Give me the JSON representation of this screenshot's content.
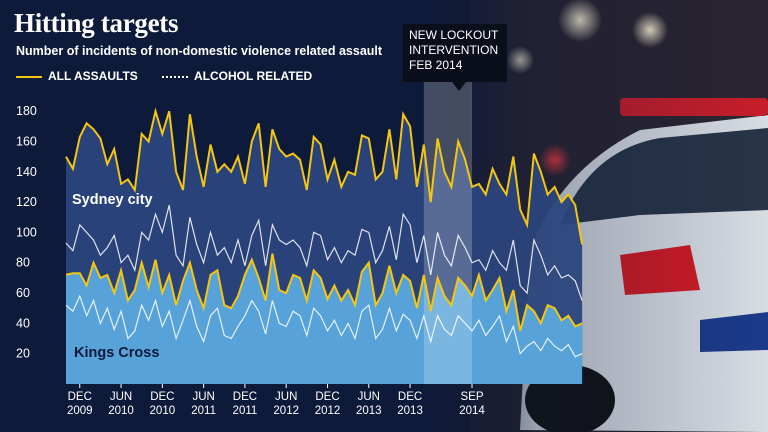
{
  "chart_data": {
    "type": "area",
    "title": "Hitting targets",
    "subtitle": "Number of incidents of non-domestic violence related assault",
    "legend": [
      {
        "label": "ALL ASSAULTS",
        "style": "solid",
        "color": "#f3c613"
      },
      {
        "label": "ALCOHOL RELATED",
        "style": "dotted",
        "color": "#ffffff"
      }
    ],
    "legend_position": "top-left",
    "ylim": [
      0,
      190
    ],
    "yticks": [
      20,
      40,
      60,
      80,
      100,
      120,
      140,
      160,
      180
    ],
    "x_range": [
      "2009-10",
      "2014-09"
    ],
    "xticks": [
      {
        "month": "DEC",
        "year": "2009",
        "date": "2009-12"
      },
      {
        "month": "JUN",
        "year": "2010",
        "date": "2010-06"
      },
      {
        "month": "DEC",
        "year": "2010",
        "date": "2010-12"
      },
      {
        "month": "JUN",
        "year": "2011",
        "date": "2011-06"
      },
      {
        "month": "DEC",
        "year": "2011",
        "date": "2011-12"
      },
      {
        "month": "JUN",
        "year": "2012",
        "date": "2012-06"
      },
      {
        "month": "DEC",
        "year": "2012",
        "date": "2012-12"
      },
      {
        "month": "JUN",
        "year": "2013",
        "date": "2013-06"
      },
      {
        "month": "DEC",
        "year": "2013",
        "date": "2013-12"
      },
      {
        "month": "SEP",
        "year": "2014",
        "date": "2014-09"
      }
    ],
    "grid": false,
    "start_month": "2009-10",
    "series": [
      {
        "name": "Sydney city",
        "measure": "ALL ASSAULTS",
        "values": [
          150,
          142,
          163,
          172,
          168,
          162,
          145,
          155,
          132,
          135,
          128,
          165,
          160,
          180,
          165,
          180,
          140,
          128,
          178,
          150,
          130,
          158,
          140,
          145,
          140,
          150,
          132,
          160,
          172,
          130,
          168,
          155,
          150,
          152,
          148,
          128,
          163,
          158,
          135,
          148,
          130,
          140,
          138,
          164,
          162,
          135,
          140,
          168,
          135,
          178,
          170,
          130,
          158,
          120,
          162,
          140,
          130,
          160,
          148,
          130,
          132,
          125,
          142,
          132,
          125,
          150,
          115,
          105,
          152,
          140,
          125,
          130,
          120,
          125,
          118,
          92
        ]
      },
      {
        "name": "Sydney city",
        "measure": "ALCOHOL RELATED",
        "values": [
          93,
          88,
          105,
          100,
          95,
          85,
          90,
          98,
          80,
          85,
          75,
          100,
          95,
          112,
          100,
          118,
          85,
          78,
          110,
          92,
          80,
          100,
          85,
          90,
          80,
          95,
          78,
          98,
          108,
          78,
          105,
          95,
          92,
          95,
          90,
          78,
          100,
          98,
          82,
          90,
          80,
          88,
          85,
          102,
          100,
          80,
          88,
          104,
          82,
          112,
          105,
          80,
          98,
          72,
          100,
          85,
          78,
          98,
          90,
          80,
          82,
          75,
          88,
          80,
          75,
          95,
          65,
          60,
          95,
          85,
          72,
          78,
          70,
          72,
          68,
          55
        ]
      },
      {
        "name": "Kings Cross",
        "measure": "ALL ASSAULTS",
        "values": [
          72,
          73,
          73,
          65,
          80,
          70,
          72,
          60,
          75,
          55,
          62,
          80,
          64,
          82,
          60,
          72,
          52,
          68,
          80,
          62,
          50,
          72,
          75,
          52,
          50,
          58,
          72,
          82,
          70,
          55,
          86,
          62,
          60,
          72,
          70,
          55,
          75,
          70,
          56,
          65,
          55,
          62,
          52,
          74,
          80,
          52,
          60,
          78,
          60,
          72,
          68,
          50,
          72,
          48,
          70,
          58,
          52,
          70,
          65,
          58,
          72,
          55,
          62,
          70,
          48,
          62,
          35,
          52,
          48,
          40,
          52,
          50,
          42,
          45,
          38,
          40
        ]
      },
      {
        "name": "Kings Cross",
        "measure": "ALCOHOL RELATED",
        "values": [
          52,
          48,
          58,
          45,
          55,
          40,
          50,
          36,
          48,
          30,
          35,
          52,
          42,
          55,
          38,
          48,
          30,
          42,
          55,
          38,
          28,
          45,
          50,
          32,
          30,
          38,
          45,
          55,
          48,
          33,
          55,
          40,
          38,
          48,
          45,
          32,
          50,
          45,
          35,
          42,
          32,
          40,
          30,
          48,
          52,
          30,
          36,
          50,
          35,
          46,
          42,
          30,
          45,
          28,
          45,
          36,
          32,
          45,
          40,
          35,
          42,
          32,
          38,
          45,
          28,
          38,
          20,
          25,
          28,
          22,
          30,
          25,
          22,
          26,
          18,
          20
        ]
      }
    ],
    "annotations": [
      {
        "text": "Sydney city",
        "series": "Sydney city"
      },
      {
        "text": "Kings Cross",
        "series": "Kings Cross"
      },
      {
        "text": "NEW LOCKOUT\nINTERVENTION\nFEB 2014",
        "date": "2014-02"
      }
    ],
    "intervention_band": [
      "2014-02",
      "2014-09"
    ]
  },
  "colors": {
    "background": "#0e1a3a",
    "sydney_area": "#2b447c",
    "kings_area": "#5aa8dd",
    "all_assaults_line": "#f3c613",
    "alcohol_line": "#ffffff",
    "band": "#ffffff"
  }
}
